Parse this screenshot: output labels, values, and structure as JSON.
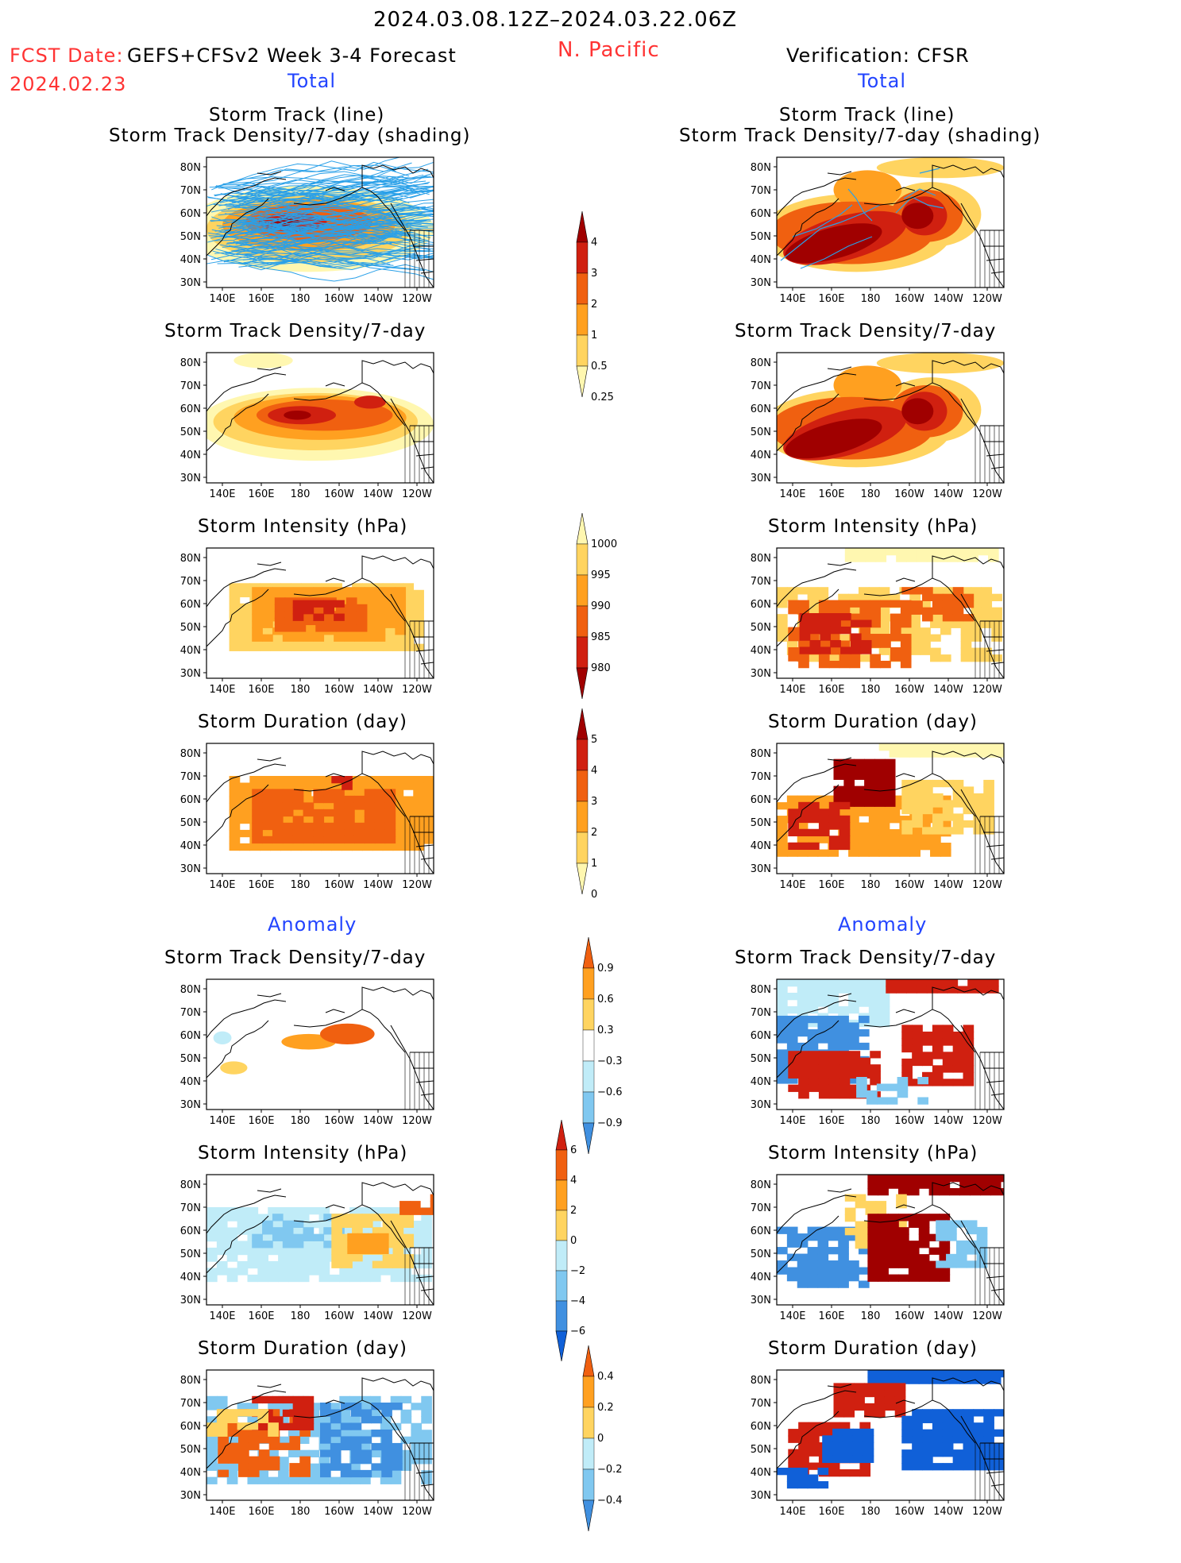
{
  "header": {
    "period": "2024.03.08.12Z–2024.03.22.06Z",
    "fcst_label": "FCST Date:",
    "fcst_date": "2024.02.23",
    "forecast_title": "GEFS+CFSv2 Week 3-4 Forecast",
    "region": "N. Pacific",
    "verification": "Verification: CFSR"
  },
  "section_labels": {
    "total": "Total",
    "anomaly": "Anomaly"
  },
  "panel_titles": {
    "track_line": "Storm Track (line)",
    "track_shading": "Storm Track Density/7-day (shading)",
    "density": "Storm Track Density/7-day",
    "intensity": "Storm Intensity (hPa)",
    "duration": "Storm Duration (day)"
  },
  "map_axes": {
    "lat_labels": [
      "80N",
      "70N",
      "60N",
      "50N",
      "40N",
      "30N"
    ],
    "lon_labels": [
      "140E",
      "160E",
      "180",
      "160W",
      "140W",
      "120W"
    ]
  },
  "colorbars": {
    "density_total": [
      "4",
      "3",
      "2",
      "1",
      "0.5",
      "0.25"
    ],
    "intensity_total": [
      "1000",
      "995",
      "990",
      "985",
      "980"
    ],
    "duration_total": [
      "5",
      "4",
      "3",
      "2",
      "1",
      "0"
    ],
    "density_anom": [
      "0.9",
      "0.6",
      "0.3",
      "−0.3",
      "−0.6",
      "−0.9"
    ],
    "intensity_anom": [
      "6",
      "4",
      "2",
      "0",
      "−2",
      "−4",
      "−6"
    ],
    "duration_anom": [
      "0.4",
      "0.2",
      "0",
      "−0.2",
      "−0.4"
    ]
  },
  "colors": {
    "warm": [
      "#fff7b0",
      "#ffd460",
      "#ffa020",
      "#f06010",
      "#d02010",
      "#a00000"
    ],
    "cool": [
      "#c0ecf8",
      "#80c8f0",
      "#4090e0",
      "#1060d8"
    ],
    "track": "#2aa0e8"
  }
}
